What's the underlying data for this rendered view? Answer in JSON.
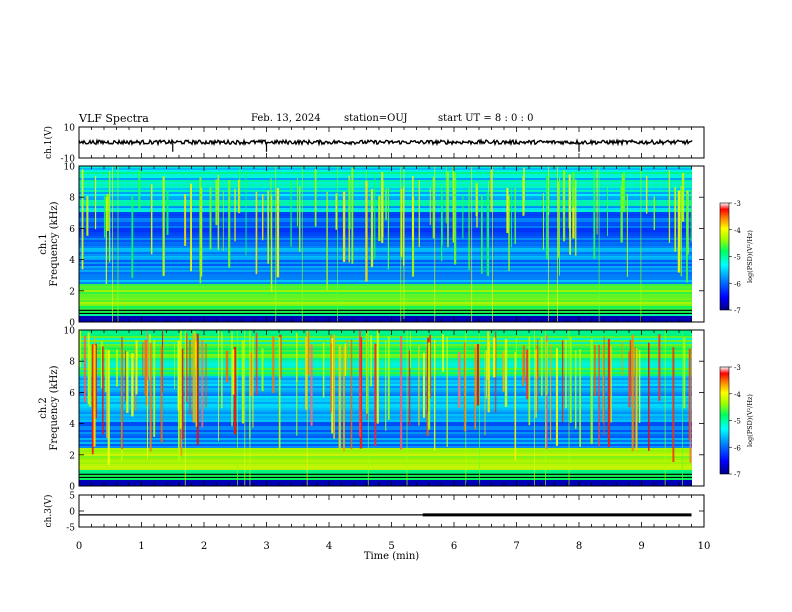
{
  "header": {
    "title": "VLF Spectra",
    "date": "Feb. 13, 2024",
    "station": "station=OUJ",
    "start": "start  UT =   8 : 0  : 0"
  },
  "chart_data": [
    {
      "type": "line",
      "name": "ch1-waveform",
      "ylabel": "ch.1(V)",
      "ylim": [
        -10,
        10
      ],
      "yticks": [
        "10",
        "-10"
      ],
      "xlim": [
        0,
        10
      ],
      "description_level": 0.2
    },
    {
      "type": "heatmap",
      "name": "ch1-spectrogram",
      "ylabel_ch": "ch.1",
      "ylabel": "Frequency (kHz)",
      "ylim": [
        0,
        10
      ],
      "yticks": [
        "0",
        "2",
        "4",
        "6",
        "8",
        "10"
      ],
      "xlim": [
        0,
        9.8
      ],
      "colorbar": {
        "label": "log(PSD)(V²/Hz)",
        "range": [
          -7,
          -3
        ],
        "ticks": [
          "-3",
          "-4",
          "-5",
          "-6",
          "-7"
        ]
      }
    },
    {
      "type": "heatmap",
      "name": "ch2-spectrogram",
      "ylabel_ch": "ch.2",
      "ylabel": "Frequency (kHz)",
      "ylim": [
        0,
        10
      ],
      "yticks": [
        "0",
        "2",
        "4",
        "6",
        "8",
        "10"
      ],
      "xlim": [
        0,
        9.8
      ],
      "colorbar": {
        "label": "log(PSD)(V²/Hz)",
        "range": [
          -7,
          -3
        ],
        "ticks": [
          "-3",
          "-4",
          "-5",
          "-6",
          "-7"
        ]
      }
    },
    {
      "type": "line",
      "name": "ch3-signal",
      "ylabel": "ch.3(V)",
      "ylim": [
        -5,
        5
      ],
      "yticks": [
        "5",
        "0",
        "-5"
      ],
      "x": [
        0,
        5.5,
        9.8
      ],
      "y": [
        -1.2,
        -1.2,
        -1.2
      ],
      "thick_from": 5.5
    }
  ],
  "xaxis": {
    "label": "Time (min)",
    "ticks": [
      "0",
      "1",
      "2",
      "3",
      "4",
      "5",
      "6",
      "7",
      "8",
      "9",
      "10"
    ],
    "range": [
      0,
      10
    ]
  },
  "colors": {
    "background": "#ffffff",
    "axes": "#000000",
    "colormap": [
      "#000080",
      "#0000ff",
      "#0080ff",
      "#00ffff",
      "#00ff80",
      "#80ff00",
      "#ffff00",
      "#ff8000",
      "#ff0000",
      "#ffffff"
    ]
  }
}
